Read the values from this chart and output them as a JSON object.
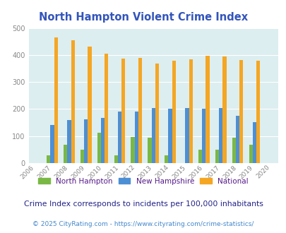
{
  "title": "North Hampton Violent Crime Index",
  "years": [
    2006,
    2007,
    2008,
    2009,
    2010,
    2011,
    2012,
    2013,
    2014,
    2015,
    2016,
    2017,
    2018,
    2019,
    2020
  ],
  "north_hampton": [
    0,
    28,
    67,
    50,
    112,
    28,
    97,
    93,
    28,
    0,
    50,
    50,
    93,
    68,
    0
  ],
  "new_hampshire": [
    0,
    140,
    160,
    163,
    168,
    190,
    191,
    203,
    200,
    203,
    200,
    203,
    175,
    152,
    0
  ],
  "national": [
    0,
    466,
    454,
    432,
    406,
    387,
    388,
    368,
    378,
    384,
    398,
    394,
    381,
    380,
    0
  ],
  "nh_color": "#4d8fd4",
  "national_color": "#f5a623",
  "north_hampton_color": "#7ab845",
  "bg_color": "#ddeef0",
  "grid_color": "#ffffff",
  "title_color": "#3355bb",
  "legend_text_color": "#551a8b",
  "footnote1_color": "#222288",
  "footnote2_color": "#4488cc",
  "ylim": [
    0,
    500
  ],
  "yticks": [
    0,
    100,
    200,
    300,
    400,
    500
  ],
  "legend_labels": [
    "North Hampton",
    "New Hampshire",
    "National"
  ],
  "footnote1": "Crime Index corresponds to incidents per 100,000 inhabitants",
  "footnote2": "© 2025 CityRating.com - https://www.cityrating.com/crime-statistics/",
  "bar_width": 0.22
}
